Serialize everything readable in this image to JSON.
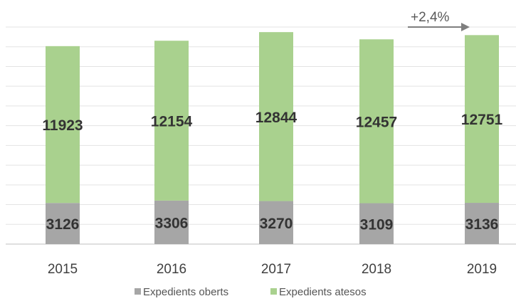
{
  "chart_data": {
    "type": "bar",
    "stacked": true,
    "categories": [
      "2015",
      "2016",
      "2017",
      "2018",
      "2019"
    ],
    "series": [
      {
        "name": "Expedients oberts",
        "values": [
          3126,
          3306,
          3270,
          3109,
          3136
        ],
        "color": "#a6a6a6"
      },
      {
        "name": "Expedients atesos",
        "values": [
          11923,
          12154,
          12844,
          12457,
          12751
        ],
        "color": "#a9d18e"
      }
    ],
    "ylim": [
      0,
      16500
    ],
    "grid": true,
    "legend_position": "bottom",
    "annotation": {
      "text": "+2,4%",
      "color": "#7f7f7f"
    }
  }
}
